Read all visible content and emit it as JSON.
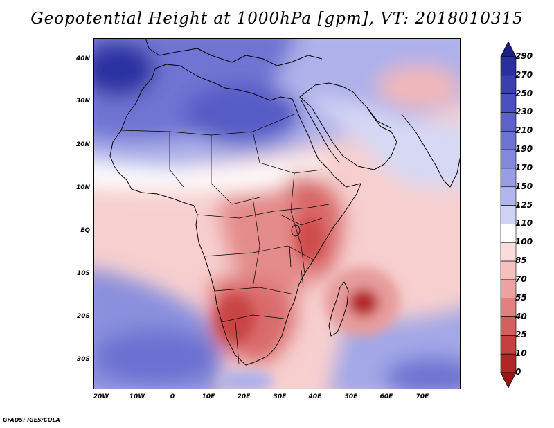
{
  "title": "Geopotential Height at 1000hPa [gpm], VT: 2018010315",
  "credit": "GrADS: IGES/COLA",
  "axes": {
    "lat_labels": [
      "40N",
      "30N",
      "20N",
      "10N",
      "EQ",
      "10S",
      "20S",
      "30S"
    ],
    "lon_labels": [
      "20W",
      "10W",
      "0",
      "10E",
      "20E",
      "30E",
      "40E",
      "50E",
      "60E",
      "70E"
    ]
  },
  "colorbar": {
    "levels": [
      "290",
      "270",
      "250",
      "230",
      "210",
      "190",
      "170",
      "150",
      "125",
      "110",
      "100",
      "85",
      "70",
      "55",
      "40",
      "25",
      "10",
      "0"
    ],
    "colors": [
      "#1b1f8c",
      "#2a2fa0",
      "#3a3fb0",
      "#4b50be",
      "#5c62c9",
      "#6e74d3",
      "#8288dc",
      "#989de4",
      "#b2b6ec",
      "#cfd2f4",
      "#ffffff",
      "#fbdcdc",
      "#f6c0bf",
      "#eda2a1",
      "#e28080",
      "#d55f5f",
      "#c54040",
      "#b02525",
      "#9a1414"
    ]
  },
  "chart_data": {
    "type": "heatmap",
    "title": "Geopotential Height at 1000hPa [gpm], VT: 2018010315",
    "variable": "Geopotential Height",
    "units": "gpm",
    "level": "1000hPa",
    "valid_time": "2018010315",
    "lon_range": [
      -23,
      80
    ],
    "lat_range": [
      -37,
      45
    ],
    "color_levels": [
      0,
      10,
      25,
      40,
      55,
      70,
      85,
      100,
      110,
      125,
      150,
      170,
      190,
      210,
      230,
      250,
      270,
      290
    ],
    "features": [
      {
        "name": "high-northwest-atlantic",
        "lon": -17,
        "lat": 37,
        "value": 280
      },
      {
        "name": "high-sahara",
        "lon": 5,
        "lat": 27,
        "value": 230
      },
      {
        "name": "low-madagascar-east",
        "lon": 53,
        "lat": -17,
        "value": 5
      },
      {
        "name": "low-namibia-kalahari",
        "lon": 18,
        "lat": -19,
        "value": 25
      },
      {
        "name": "low-east-africa",
        "lon": 33,
        "lat": 0,
        "value": 30
      },
      {
        "name": "high-south-atlantic",
        "lon": -10,
        "lat": -30,
        "value": 200
      },
      {
        "name": "high-south-indian",
        "lon": 68,
        "lat": -33,
        "value": 190
      }
    ]
  }
}
